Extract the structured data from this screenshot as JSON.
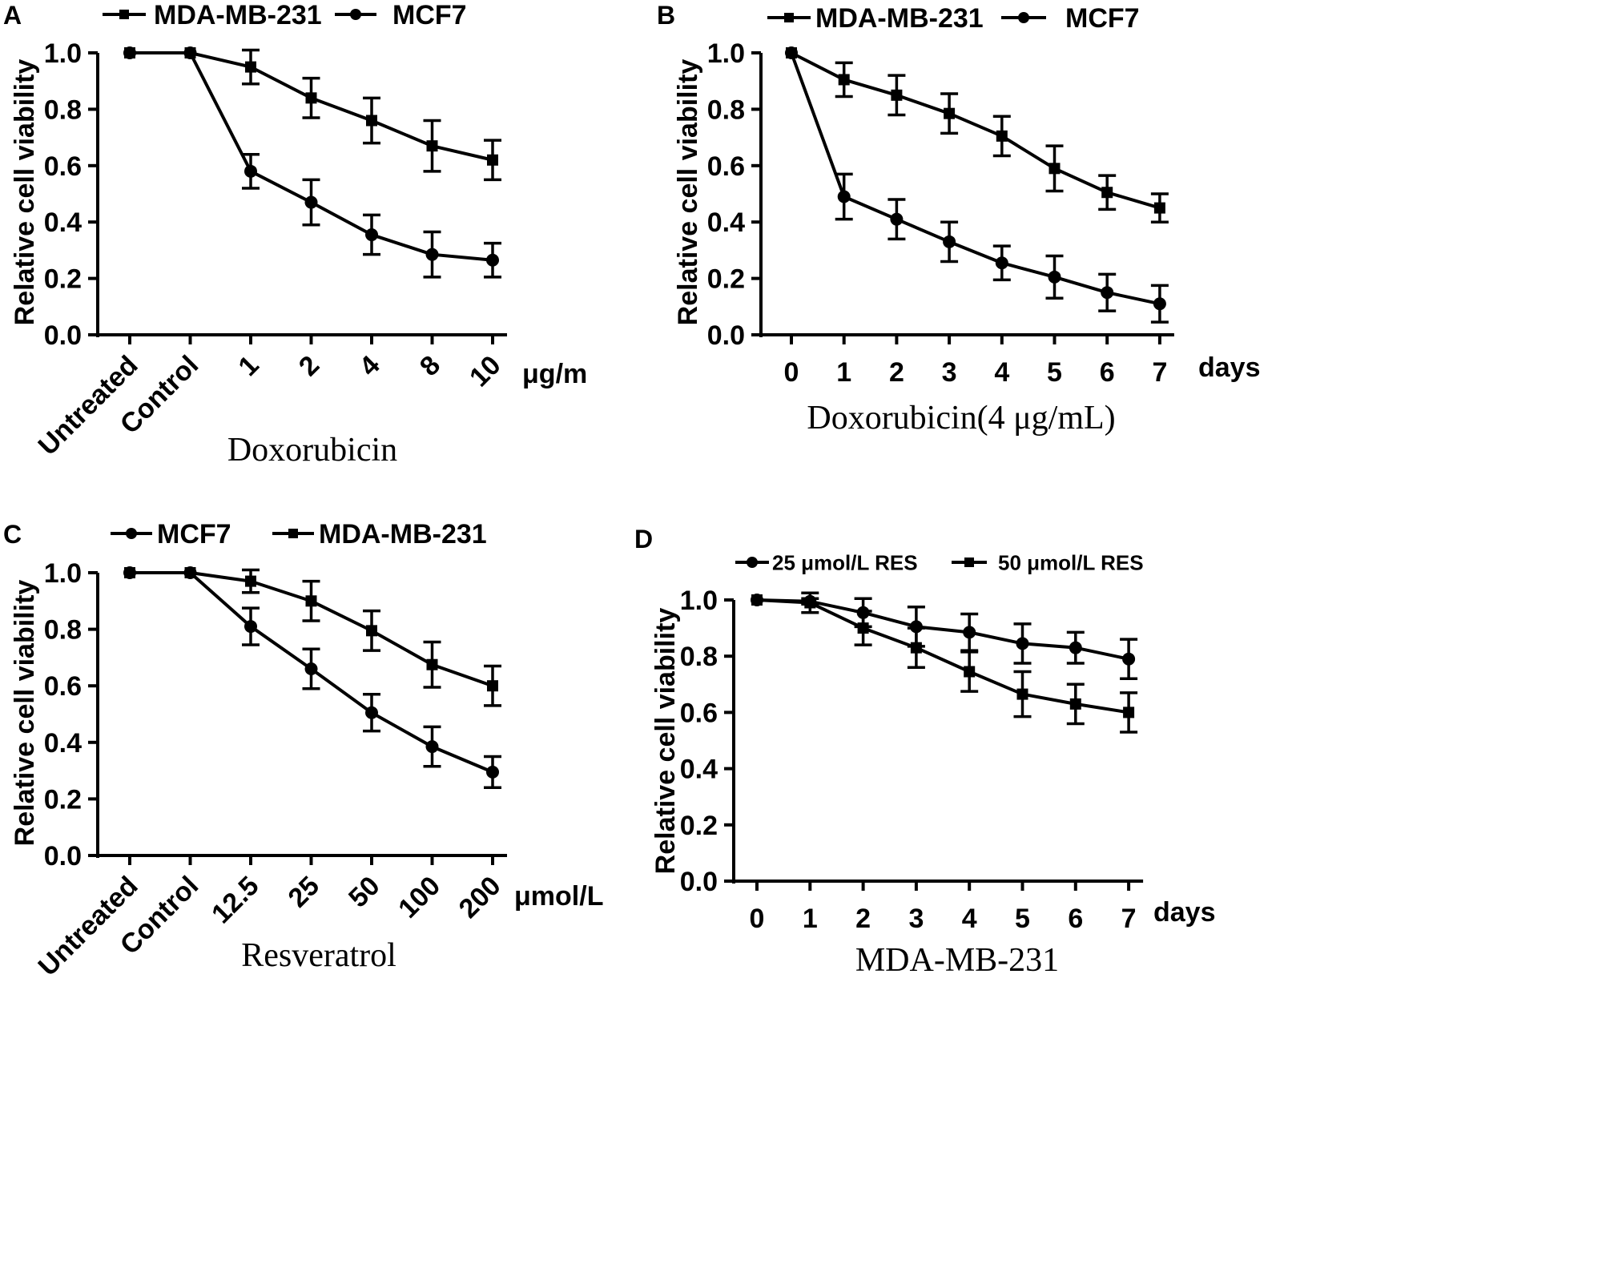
{
  "chart_data": [
    {
      "panel_label": "A",
      "type": "line",
      "categories": [
        "Untreated",
        "Control",
        "1",
        "2",
        "4",
        "8",
        "10"
      ],
      "x_unit": "μg/m",
      "xlabel": "Doxorubicin",
      "ylabel": "Relative cell viability",
      "ylim": [
        0.0,
        1.0
      ],
      "yticks": [
        "0.0",
        "0.2",
        "0.4",
        "0.6",
        "0.8",
        "1.0"
      ],
      "grid": false,
      "legend_position": "top",
      "series": [
        {
          "name": "MDA-MB-231",
          "marker": "square",
          "values": [
            1.0,
            1.0,
            0.95,
            0.84,
            0.76,
            0.67,
            0.62
          ],
          "errors": [
            0,
            0,
            0.06,
            0.07,
            0.08,
            0.09,
            0.07
          ]
        },
        {
          "name": "MCF7",
          "marker": "circle",
          "values": [
            1.0,
            1.0,
            0.58,
            0.47,
            0.355,
            0.285,
            0.265
          ],
          "errors": [
            0,
            0,
            0.06,
            0.08,
            0.07,
            0.08,
            0.06
          ]
        }
      ]
    },
    {
      "panel_label": "B",
      "type": "line",
      "categories": [
        "0",
        "1",
        "2",
        "3",
        "4",
        "5",
        "6",
        "7"
      ],
      "x_unit": "days",
      "xlabel": "Doxorubicin(4 μg/mL)",
      "ylabel": "Relative cell viability",
      "ylim": [
        0.0,
        1.0
      ],
      "yticks": [
        "0.0",
        "0.2",
        "0.4",
        "0.6",
        "0.8",
        "1.0"
      ],
      "grid": false,
      "legend_position": "top",
      "series": [
        {
          "name": "MDA-MB-231",
          "marker": "square",
          "values": [
            1.0,
            0.905,
            0.85,
            0.785,
            0.705,
            0.59,
            0.505,
            0.45
          ],
          "errors": [
            0,
            0.06,
            0.07,
            0.07,
            0.07,
            0.08,
            0.06,
            0.05
          ]
        },
        {
          "name": "MCF7",
          "marker": "circle",
          "values": [
            1.0,
            0.49,
            0.41,
            0.33,
            0.255,
            0.205,
            0.15,
            0.11
          ],
          "errors": [
            0,
            0.08,
            0.07,
            0.07,
            0.06,
            0.075,
            0.065,
            0.065
          ]
        }
      ]
    },
    {
      "panel_label": "C",
      "type": "line",
      "categories": [
        "Untreated",
        "Control",
        "12.5",
        "25",
        "50",
        "100",
        "200"
      ],
      "x_unit": "μmol/L",
      "xlabel": "Resveratrol",
      "ylabel": "Relative cell viability",
      "ylim": [
        0.0,
        1.0
      ],
      "yticks": [
        "0.0",
        "0.2",
        "0.4",
        "0.6",
        "0.8",
        "1.0"
      ],
      "grid": false,
      "legend_position": "top",
      "series": [
        {
          "name": "MCF7",
          "marker": "circle",
          "values": [
            1.0,
            1.0,
            0.81,
            0.66,
            0.505,
            0.385,
            0.295
          ],
          "errors": [
            0,
            0,
            0.065,
            0.07,
            0.065,
            0.07,
            0.055
          ]
        },
        {
          "name": "MDA-MB-231",
          "marker": "square",
          "values": [
            1.0,
            1.0,
            0.97,
            0.9,
            0.795,
            0.675,
            0.6
          ],
          "errors": [
            0,
            0,
            0.04,
            0.07,
            0.07,
            0.08,
            0.07
          ]
        }
      ]
    },
    {
      "panel_label": "D",
      "type": "line",
      "categories": [
        "0",
        "1",
        "2",
        "3",
        "4",
        "5",
        "6",
        "7"
      ],
      "x_unit": "days",
      "xlabel": "MDA-MB-231",
      "ylabel": "Relative cell viability",
      "ylim": [
        0.0,
        1.0
      ],
      "yticks": [
        "0.0",
        "0.2",
        "0.4",
        "0.6",
        "0.8",
        "1.0"
      ],
      "grid": false,
      "legend_position": "top",
      "series": [
        {
          "name": "25 μmol/L RES",
          "marker": "circle",
          "values": [
            1.0,
            0.995,
            0.955,
            0.905,
            0.885,
            0.845,
            0.83,
            0.79
          ],
          "errors": [
            0,
            0.01,
            0.05,
            0.07,
            0.065,
            0.07,
            0.055,
            0.07
          ]
        },
        {
          "name": "50 μmol/L RES",
          "marker": "square",
          "values": [
            1.0,
            0.99,
            0.9,
            0.83,
            0.745,
            0.665,
            0.63,
            0.6
          ],
          "errors": [
            0,
            0.035,
            0.06,
            0.07,
            0.07,
            0.08,
            0.07,
            0.07
          ]
        }
      ]
    }
  ]
}
